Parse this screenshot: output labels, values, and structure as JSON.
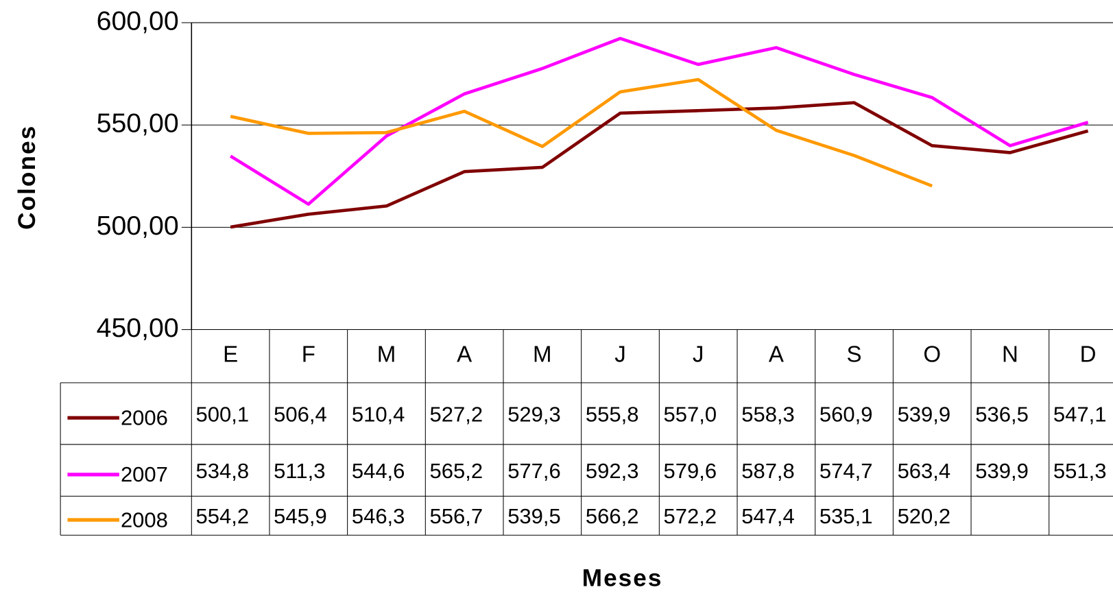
{
  "chart_data": {
    "type": "line",
    "y_label": "Colones",
    "x_label": "Meses",
    "categories": [
      "E",
      "F",
      "M",
      "A",
      "M",
      "J",
      "J",
      "A",
      "S",
      "O",
      "N",
      "D"
    ],
    "series": [
      {
        "name": "2006",
        "color": "#800000",
        "values": [
          500.1,
          506.4,
          510.4,
          527.2,
          529.3,
          555.8,
          557.0,
          558.3,
          560.9,
          539.9,
          536.5,
          547.1
        ],
        "value_labels": [
          "500,1",
          "506,4",
          "510,4",
          "527,2",
          "529,3",
          "555,8",
          "557,0",
          "558,3",
          "560,9",
          "539,9",
          "536,5",
          "547,1"
        ]
      },
      {
        "name": "2007",
        "color": "#ff00ff",
        "values": [
          534.8,
          511.3,
          544.6,
          565.2,
          577.6,
          592.3,
          579.6,
          587.8,
          574.7,
          563.4,
          539.9,
          551.3
        ],
        "value_labels": [
          "534,8",
          "511,3",
          "544,6",
          "565,2",
          "577,6",
          "592,3",
          "579,6",
          "587,8",
          "574,7",
          "563,4",
          "539,9",
          "551,3"
        ]
      },
      {
        "name": "2008",
        "color": "#ff9900",
        "values": [
          554.2,
          545.9,
          546.3,
          556.7,
          539.5,
          566.2,
          572.2,
          547.4,
          535.1,
          520.2,
          null,
          null
        ],
        "value_labels": [
          "554,2",
          "545,9",
          "546,3",
          "556,7",
          "539,5",
          "566,2",
          "572,2",
          "547,4",
          "535,1",
          "520,2",
          null,
          null
        ]
      }
    ],
    "ylim": [
      450,
      600
    ],
    "yticks": [
      {
        "value": 450,
        "label": "450,00"
      },
      {
        "value": 500,
        "label": "500,00"
      },
      {
        "value": 550,
        "label": "550,00"
      },
      {
        "value": 600,
        "label": "600,00"
      }
    ],
    "grid": true,
    "legend": "table"
  }
}
